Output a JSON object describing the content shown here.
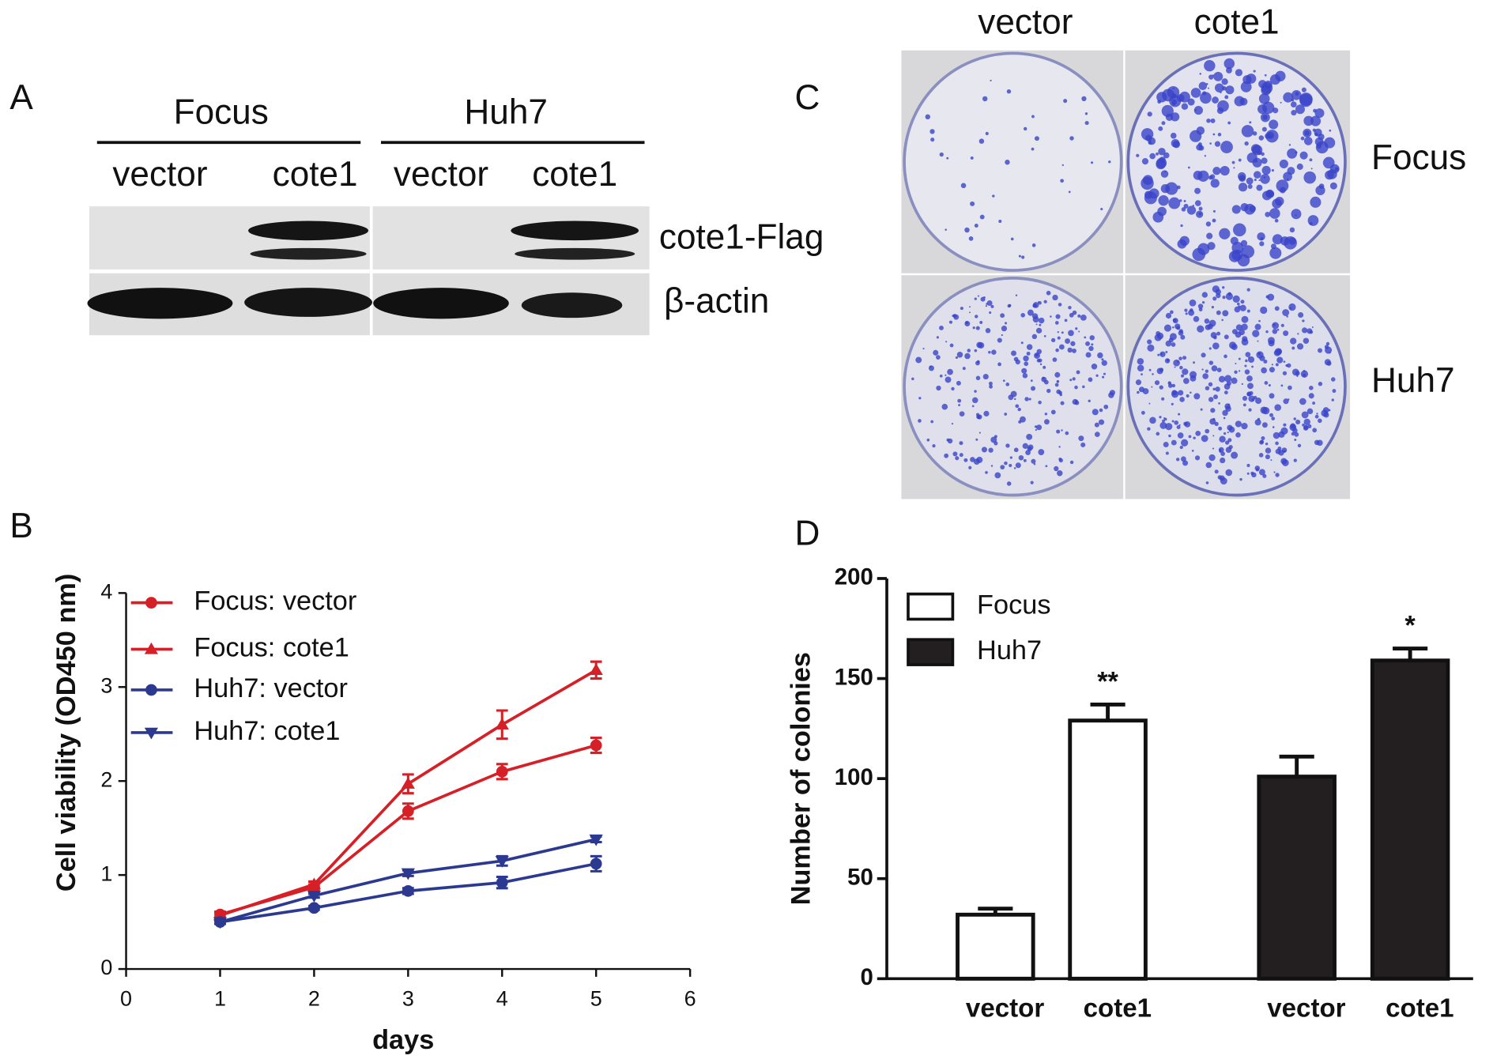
{
  "panel_labels": [
    "A",
    "B",
    "C",
    "D"
  ],
  "western_blot": {
    "groups": [
      "Focus",
      "Huh7"
    ],
    "lanes": [
      "vector",
      "cote1",
      "vector",
      "cote1"
    ],
    "bands": [
      "cote1-Flag",
      "β-actin"
    ]
  },
  "colony_assay": {
    "columns": [
      "vector",
      "cote1"
    ],
    "rows": [
      "Focus",
      "Huh7"
    ]
  },
  "chart_data": [
    {
      "type": "line",
      "xlabel": "days",
      "ylabel": "Cell viability (OD450 nm)",
      "xlim": [
        0,
        6
      ],
      "xticks": [
        0,
        1,
        2,
        3,
        4,
        5,
        6
      ],
      "ylim": [
        0,
        4
      ],
      "yticks": [
        0,
        1,
        2,
        3,
        4
      ],
      "legend": "upper left",
      "x": [
        1,
        2,
        3,
        4,
        5
      ],
      "series": [
        {
          "name": "Focus: vector",
          "color": "#d62027",
          "marker": "circle",
          "values": [
            0.58,
            0.87,
            1.68,
            2.1,
            2.38
          ],
          "errors": [
            0.03,
            0.03,
            0.08,
            0.08,
            0.08
          ]
        },
        {
          "name": "Focus: cote1",
          "color": "#d62027",
          "marker": "triangle-up",
          "values": [
            0.57,
            0.9,
            1.97,
            2.6,
            3.18
          ],
          "errors": [
            0.03,
            0.03,
            0.1,
            0.15,
            0.09
          ]
        },
        {
          "name": "Huh7: vector",
          "color": "#2b3990",
          "marker": "circle",
          "values": [
            0.5,
            0.65,
            0.83,
            0.92,
            1.12
          ],
          "errors": [
            0.02,
            0.02,
            0.03,
            0.06,
            0.08
          ]
        },
        {
          "name": "Huh7: cote1",
          "color": "#2b3990",
          "marker": "triangle-down",
          "values": [
            0.5,
            0.78,
            1.02,
            1.15,
            1.38
          ],
          "errors": [
            0.02,
            0.02,
            0.03,
            0.05,
            0.03
          ]
        }
      ]
    },
    {
      "type": "bar",
      "ylabel": "Number of colonies",
      "ylim": [
        0,
        200
      ],
      "yticks": [
        0,
        50,
        100,
        150,
        200
      ],
      "legend": "upper left",
      "categories": [
        "vector",
        "cote1",
        "vector",
        "cote1"
      ],
      "series": [
        {
          "name": "Focus",
          "color": "#ffffff",
          "values": [
            32,
            129,
            null,
            null
          ],
          "errors": [
            3,
            8,
            null,
            null
          ]
        },
        {
          "name": "Huh7",
          "color": "#231f20",
          "values": [
            null,
            null,
            101,
            159
          ],
          "errors": [
            null,
            null,
            10,
            6
          ]
        }
      ],
      "annotations": [
        "**",
        "*"
      ]
    }
  ]
}
